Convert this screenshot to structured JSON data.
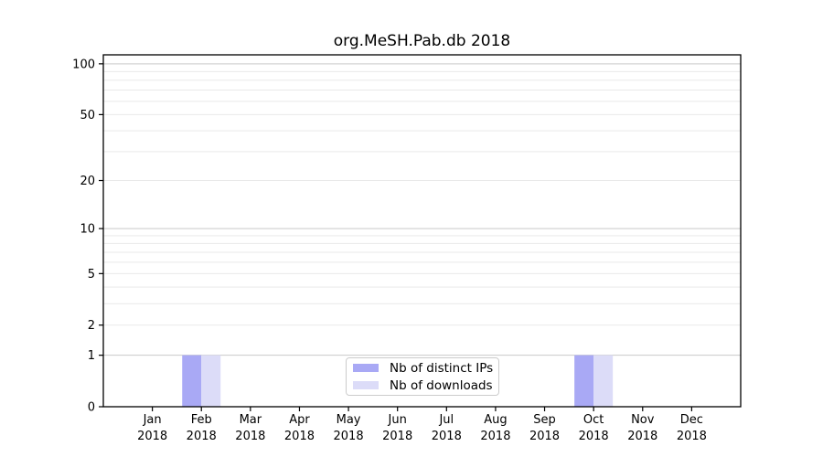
{
  "chart_data": {
    "type": "bar",
    "title": "org.MeSH.Pab.db 2018",
    "categories": [
      "Jan 2018",
      "Feb 2018",
      "Mar 2018",
      "Apr 2018",
      "May 2018",
      "Jun 2018",
      "Jul 2018",
      "Aug 2018",
      "Sep 2018",
      "Oct 2018",
      "Nov 2018",
      "Dec 2018"
    ],
    "x_tick_months": [
      "Jan",
      "Feb",
      "Mar",
      "Apr",
      "May",
      "Jun",
      "Jul",
      "Aug",
      "Sep",
      "Oct",
      "Nov",
      "Dec"
    ],
    "x_tick_year": "2018",
    "series": [
      {
        "name": "Nb of distinct IPs",
        "color": "#a9a9f5",
        "values": [
          0,
          1,
          0,
          0,
          0,
          0,
          0,
          0,
          0,
          1,
          0,
          0
        ]
      },
      {
        "name": "Nb of downloads",
        "color": "#dcdcf8",
        "values": [
          0,
          1,
          0,
          0,
          0,
          0,
          0,
          0,
          0,
          1,
          0,
          0
        ]
      }
    ],
    "y_scale": "log1p",
    "y_tick_values": [
      0,
      1,
      2,
      5,
      10,
      20,
      50,
      100
    ],
    "y_major_gridlines": [
      1,
      10,
      100
    ],
    "y_minor_gridlines": [
      2,
      3,
      4,
      5,
      6,
      7,
      8,
      9,
      20,
      30,
      40,
      50,
      60,
      70,
      80,
      90
    ],
    "ylim": [
      0,
      113
    ],
    "grid": "horizontal",
    "legend_position": "inside-bottom-center"
  },
  "colors": {
    "background": "#ffffff",
    "axis": "#000000",
    "tick_text": "#000000",
    "major_grid": "#c9c9c9",
    "minor_grid": "#e9e9e9",
    "legend_border": "#cccccc"
  }
}
